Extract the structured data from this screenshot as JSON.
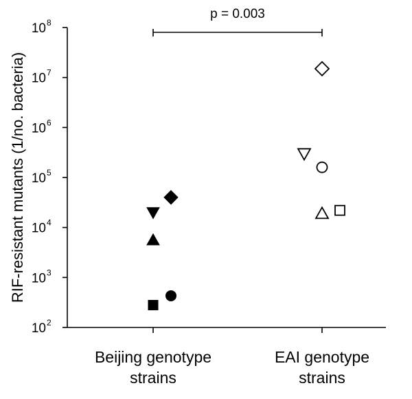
{
  "chart_data": {
    "type": "scatter",
    "ylabel": "RIF-resistant mutants (1/no. bacteria)",
    "yscale": "log",
    "ylim": [
      100,
      100000000
    ],
    "yticks": [
      {
        "base": "10",
        "exp": "2",
        "value": 100
      },
      {
        "base": "10",
        "exp": "3",
        "value": 1000
      },
      {
        "base": "10",
        "exp": "4",
        "value": 10000
      },
      {
        "base": "10",
        "exp": "5",
        "value": 100000
      },
      {
        "base": "10",
        "exp": "6",
        "value": 1000000
      },
      {
        "base": "10",
        "exp": "7",
        "value": 10000000
      },
      {
        "base": "10",
        "exp": "8",
        "value": 100000000
      }
    ],
    "categories": [
      {
        "line1": "Beijing genotype",
        "line2": "strains"
      },
      {
        "line1": "EAI genotype",
        "line2": "strains"
      }
    ],
    "points": [
      {
        "category": 0,
        "offset": 0,
        "y": 280,
        "marker": "square",
        "filled": true
      },
      {
        "category": 0,
        "offset": 1,
        "y": 430,
        "marker": "circle",
        "filled": true
      },
      {
        "category": 0,
        "offset": 0,
        "y": 5600,
        "marker": "triangle-up",
        "filled": true
      },
      {
        "category": 0,
        "offset": 0,
        "y": 20000,
        "marker": "triangle-down",
        "filled": true
      },
      {
        "category": 0,
        "offset": 1,
        "y": 40000,
        "marker": "diamond",
        "filled": true
      },
      {
        "category": 1,
        "offset": -1,
        "y": 300000,
        "marker": "triangle-down",
        "filled": false
      },
      {
        "category": 1,
        "offset": 0,
        "y": 160000,
        "marker": "circle",
        "filled": false
      },
      {
        "category": 1,
        "offset": 0,
        "y": 15000000,
        "marker": "diamond",
        "filled": false
      },
      {
        "category": 1,
        "offset": 0,
        "y": 19000,
        "marker": "triangle-up",
        "filled": false
      },
      {
        "category": 1,
        "offset": 1,
        "y": 22000,
        "marker": "square",
        "filled": false
      }
    ],
    "annotation": {
      "text": "p = 0.003",
      "from_category": 0,
      "to_category": 1
    },
    "grid": false,
    "legend": "none"
  }
}
